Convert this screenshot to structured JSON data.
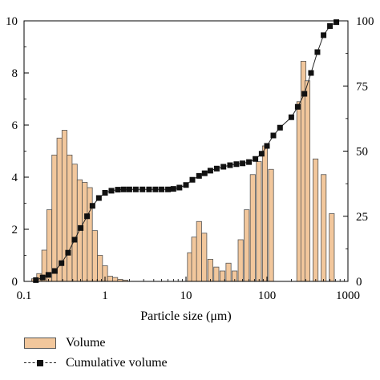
{
  "chart_data": {
    "type": "bar",
    "title": "",
    "xlabel": "Particle size (μm)",
    "xscale": "log",
    "xlim": [
      0.1,
      1000
    ],
    "xticks": [
      0.1,
      1,
      10,
      100,
      1000
    ],
    "xtick_labels": [
      "0.1",
      "1",
      "10",
      "100",
      "1000"
    ],
    "ylabel_left": "",
    "ylim_left": [
      0,
      10
    ],
    "yticks_left": [
      0,
      2,
      4,
      6,
      8,
      10
    ],
    "ytick_labels_left": [
      "0",
      "2",
      "4",
      "6",
      "8",
      "10"
    ],
    "ylabel_right": "",
    "ylim_right": [
      0,
      100
    ],
    "yticks_right": [
      0,
      25,
      50,
      75,
      100
    ],
    "ytick_labels_right": [
      "0",
      "25",
      "50",
      "75",
      "100"
    ],
    "grid": false,
    "legend_position": "bottom-left, below plot",
    "colors": {
      "bar_fill": "#f2c79c",
      "bar_edge": "#555555",
      "line": "#222222",
      "marker": "#111111"
    },
    "series": [
      {
        "name": "Volume",
        "type": "bar",
        "axis": "left",
        "x": [
          0.133,
          0.154,
          0.178,
          0.205,
          0.237,
          0.274,
          0.316,
          0.365,
          0.422,
          0.487,
          0.562,
          0.649,
          0.75,
          0.866,
          1.0,
          1.155,
          1.334,
          1.54,
          1.778,
          11.2,
          12.6,
          14.5,
          16.8,
          20.0,
          23.7,
          28.2,
          33.5,
          39.8,
          47.3,
          56.2,
          66.8,
          79.4,
          94.4,
          112.2,
          133.4,
          158.5,
          251,
          282,
          316,
          398,
          501,
          631,
          750
        ],
        "values": [
          0.1,
          0.3,
          1.2,
          2.75,
          4.85,
          5.5,
          5.8,
          4.85,
          4.5,
          3.9,
          3.8,
          3.6,
          1.95,
          1.0,
          0.6,
          0.2,
          0.15,
          0.08,
          0.05,
          1.1,
          1.7,
          2.3,
          1.85,
          0.85,
          0.55,
          0.4,
          0.7,
          0.4,
          1.6,
          2.75,
          4.1,
          4.6,
          5.2,
          4.3,
          0.0,
          0.0,
          6.9,
          8.45,
          7.7,
          4.7,
          4.1,
          2.6,
          0.0
        ]
      },
      {
        "name": "Cumulative volume",
        "type": "line",
        "axis": "right",
        "marker": "square",
        "x": [
          0.14,
          0.17,
          0.2,
          0.24,
          0.29,
          0.35,
          0.42,
          0.5,
          0.6,
          0.7,
          0.84,
          1.0,
          1.2,
          1.44,
          1.7,
          2.0,
          2.4,
          2.9,
          3.5,
          4.2,
          5.0,
          6.0,
          7.0,
          8.3,
          10.0,
          12.0,
          14.5,
          17.0,
          20.0,
          24.0,
          29.0,
          35.0,
          42.0,
          50.0,
          60.0,
          72.0,
          86.0,
          100.0,
          120.0,
          145.0,
          200.0,
          240.0,
          290.0,
          350.0,
          420.0,
          500.0,
          600.0,
          720.0
        ],
        "values": [
          0.5,
          1.5,
          2.5,
          4.0,
          7.0,
          11.0,
          16.0,
          20.5,
          25.0,
          29.0,
          32.0,
          34.0,
          34.8,
          35.2,
          35.3,
          35.3,
          35.3,
          35.3,
          35.3,
          35.3,
          35.3,
          35.3,
          35.5,
          36.0,
          37.0,
          39.0,
          40.5,
          41.5,
          42.5,
          43.3,
          44.0,
          44.6,
          45.0,
          45.3,
          45.8,
          47.0,
          49.0,
          52.0,
          56.0,
          59.0,
          63.0,
          67.0,
          72.0,
          80.0,
          88.0,
          94.5,
          98.0,
          99.5
        ]
      }
    ]
  }
}
